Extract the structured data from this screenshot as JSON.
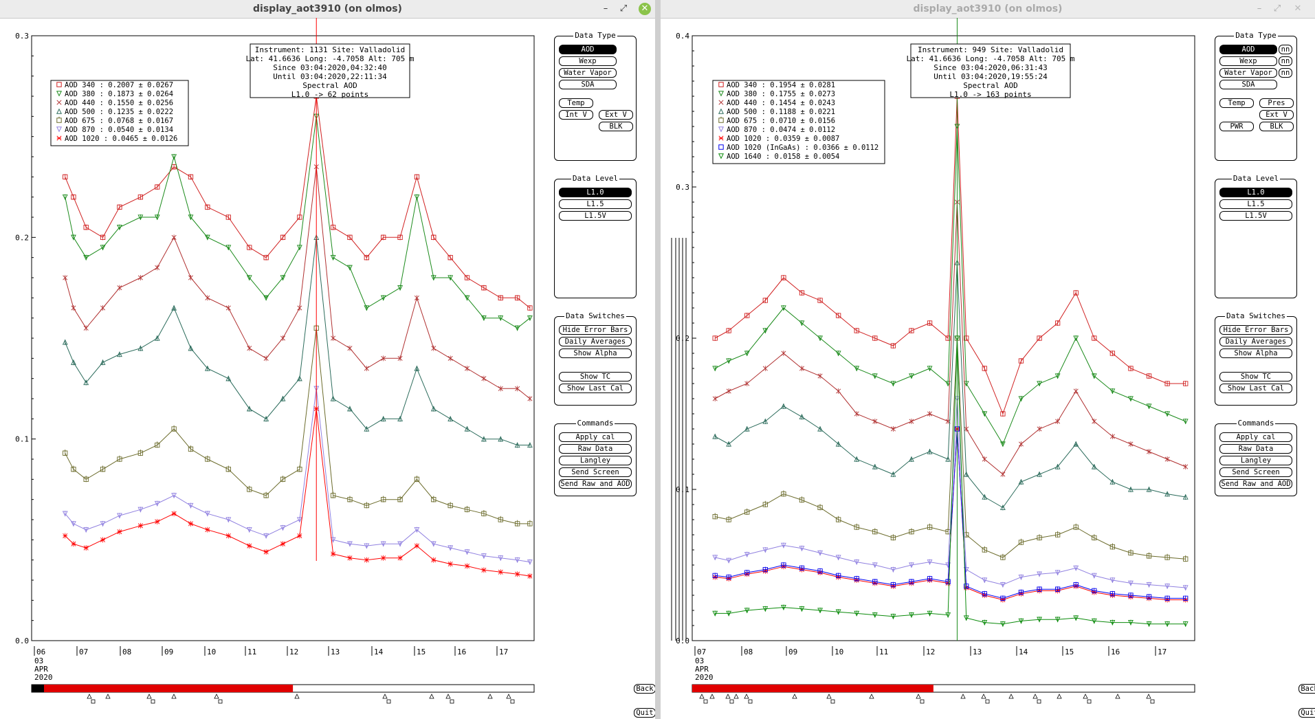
{
  "windows": [
    {
      "title": "display_aot3910 (on olmos)",
      "active": true,
      "controls": {
        "minimize": "–",
        "maximize": "⤢",
        "close": "✕"
      },
      "info": {
        "line1": "Instrument: 1131 Site: Valladolid",
        "line2": "Lat: 41.6636 Long: -4.7058 Alt: 705 m",
        "line3": "Since 03:04:2020,04:32:40",
        "line4": "Until 03:04:2020,22:11:34",
        "line5": "Spectral AOD",
        "line6": "L1.0 -> 62 points"
      },
      "legend": [
        {
          "label": "AOD 340  : 0.2007 ± 0.0267",
          "color": "#d02020"
        },
        {
          "label": "AOD 380  : 0.1873 ± 0.0264",
          "color": "#1a8a1a"
        },
        {
          "label": "AOD 440  : 0.1550 ± 0.0256",
          "color": "#b03030"
        },
        {
          "label": "AOD 500  : 0.1235 ± 0.0222",
          "color": "#2b6b5b"
        },
        {
          "label": "AOD 675  : 0.0768 ± 0.0167",
          "color": "#6b6b2b"
        },
        {
          "label": "AOD 870  : 0.0540 ± 0.0134",
          "color": "#9080e0"
        },
        {
          "label": "AOD 1020  : 0.0465 ± 0.0126",
          "color": "#ff0000"
        }
      ],
      "y_ticks": [
        "0.0",
        "0.1",
        "0.2",
        "0.3"
      ],
      "ymax": 0.3,
      "x_ticks": [
        "06",
        "07",
        "08",
        "09",
        "10",
        "11",
        "12",
        "13",
        "14",
        "15",
        "16",
        "17"
      ],
      "date_lines": [
        "03",
        "APR",
        "2020"
      ],
      "progress": 0.52,
      "panels": {
        "data_type": {
          "title": "Data Type",
          "buttons": [
            "AOD",
            "Wexp",
            "Water Vapor",
            "SDA",
            "Temp",
            "Int V",
            "Ext V",
            "BLK"
          ],
          "selected": "AOD"
        },
        "data_level": {
          "title": "Data Level",
          "buttons": [
            "L1.0",
            "L1.5",
            "L1.5V"
          ],
          "selected": "L1.0"
        },
        "switches": {
          "title": "Data Switches",
          "buttons": [
            "Hide Error Bars",
            "Daily Averages",
            "Show Alpha",
            "Show TC",
            "Show Last Cal"
          ]
        },
        "commands": {
          "title": "Commands",
          "buttons": [
            "Apply cal",
            "Raw Data",
            "Langley",
            "Send Screen",
            "Send Raw and AOD"
          ]
        }
      },
      "back": "Back",
      "quit": "Quit"
    },
    {
      "title": "display_aot3910 (on olmos)",
      "active": false,
      "controls": {
        "minimize": "–",
        "maximize": "⤢",
        "close": "✕"
      },
      "info": {
        "line1": "Instrument: 949 Site: Valladolid",
        "line2": "Lat: 41.6636 Long: -4.7058 Alt: 705 m",
        "line3": "Since 03:04:2020,06:31:43",
        "line4": "Until 03:04:2020,19:55:24",
        "line5": "Spectral AOD",
        "line6": "L1.0 -> 163 points"
      },
      "legend": [
        {
          "label": "AOD 340  : 0.1954 ± 0.0281",
          "color": "#d02020"
        },
        {
          "label": "AOD 380  : 0.1755 ± 0.0273",
          "color": "#1a8a1a"
        },
        {
          "label": "AOD 440  : 0.1454 ± 0.0243",
          "color": "#b03030"
        },
        {
          "label": "AOD 500  : 0.1188 ± 0.0221",
          "color": "#2b6b5b"
        },
        {
          "label": "AOD 675  : 0.0710 ± 0.0156",
          "color": "#6b6b2b"
        },
        {
          "label": "AOD 870  : 0.0474 ± 0.0112",
          "color": "#9080e0"
        },
        {
          "label": "AOD 1020  : 0.0359 ± 0.0087",
          "color": "#ff0000"
        },
        {
          "label": "AOD 1020 (InGaAs)  : 0.0366 ± 0.0112",
          "color": "#0000ee"
        },
        {
          "label": "AOD 1640  : 0.0158 ± 0.0054",
          "color": "#0a8a0a"
        }
      ],
      "y_ticks": [
        "0.0",
        "0.1",
        "0.2",
        "0.3",
        "0.4"
      ],
      "ymax": 0.4,
      "x_ticks": [
        "07",
        "08",
        "09",
        "10",
        "11",
        "12",
        "13",
        "14",
        "15",
        "16",
        "17"
      ],
      "date_lines": [
        "03",
        "APR",
        "2020"
      ],
      "progress": 0.48,
      "panels": {
        "data_type": {
          "title": "Data Type",
          "buttons": [
            "AOD",
            "Wexp",
            "Water Vapor",
            "SDA",
            "Temp",
            "Pres",
            "Ext V",
            "PWR",
            "BLK"
          ],
          "side": "nn",
          "selected": "AOD"
        },
        "data_level": {
          "title": "Data Level",
          "buttons": [
            "L1.0",
            "L1.5",
            "L1.5V"
          ],
          "selected": "L1.0"
        },
        "switches": {
          "title": "Data Switches",
          "buttons": [
            "Hide Error Bars",
            "Daily Averages",
            "Show Alpha",
            "Show TC",
            "Show Last Cal"
          ]
        },
        "commands": {
          "title": "Commands",
          "buttons": [
            "Apply cal",
            "Raw Data",
            "Langley",
            "Send Screen",
            "Send Raw and AOD"
          ]
        }
      },
      "back": "Back",
      "quit": "Quit"
    }
  ],
  "chart_data": [
    {
      "type": "line",
      "xlabel": "",
      "ylabel": "",
      "ylim": [
        0,
        0.3
      ],
      "x_ticks": [
        "06",
        "07",
        "08",
        "09",
        "10",
        "11",
        "12",
        "13",
        "14",
        "15",
        "16",
        "17"
      ],
      "x": [
        6.8,
        7.0,
        7.3,
        7.7,
        8.1,
        8.6,
        9.0,
        9.4,
        9.8,
        10.2,
        10.7,
        11.2,
        11.6,
        12.0,
        12.4,
        12.8,
        13.2,
        13.6,
        14.0,
        14.4,
        14.8,
        15.2,
        15.6,
        16.0,
        16.4,
        16.8,
        17.2,
        17.6,
        17.9
      ],
      "series": [
        {
          "name": "AOD 340",
          "values": [
            0.23,
            0.22,
            0.205,
            0.2,
            0.215,
            0.22,
            0.225,
            0.235,
            0.23,
            0.215,
            0.21,
            0.195,
            0.19,
            0.2,
            0.21,
            0.27,
            0.205,
            0.2,
            0.19,
            0.2,
            0.2,
            0.23,
            0.2,
            0.19,
            0.18,
            0.175,
            0.17,
            0.17,
            0.165
          ]
        },
        {
          "name": "AOD 380",
          "values": [
            0.22,
            0.2,
            0.19,
            0.195,
            0.205,
            0.21,
            0.21,
            0.24,
            0.21,
            0.2,
            0.195,
            0.18,
            0.17,
            0.18,
            0.195,
            0.26,
            0.19,
            0.185,
            0.165,
            0.17,
            0.175,
            0.22,
            0.18,
            0.18,
            0.17,
            0.16,
            0.16,
            0.155,
            0.16
          ]
        },
        {
          "name": "AOD 440",
          "values": [
            0.18,
            0.165,
            0.155,
            0.165,
            0.175,
            0.18,
            0.185,
            0.2,
            0.18,
            0.17,
            0.165,
            0.145,
            0.14,
            0.15,
            0.165,
            0.235,
            0.15,
            0.145,
            0.135,
            0.14,
            0.14,
            0.17,
            0.145,
            0.14,
            0.135,
            0.13,
            0.125,
            0.125,
            0.12
          ]
        },
        {
          "name": "AOD 500",
          "values": [
            0.148,
            0.138,
            0.128,
            0.138,
            0.142,
            0.145,
            0.15,
            0.165,
            0.145,
            0.135,
            0.13,
            0.115,
            0.11,
            0.12,
            0.13,
            0.2,
            0.12,
            0.115,
            0.105,
            0.11,
            0.11,
            0.135,
            0.115,
            0.11,
            0.105,
            0.1,
            0.1,
            0.097,
            0.097
          ]
        },
        {
          "name": "AOD 675",
          "values": [
            0.093,
            0.085,
            0.08,
            0.085,
            0.09,
            0.093,
            0.097,
            0.105,
            0.095,
            0.09,
            0.085,
            0.075,
            0.072,
            0.08,
            0.085,
            0.155,
            0.072,
            0.07,
            0.067,
            0.07,
            0.07,
            0.08,
            0.07,
            0.067,
            0.065,
            0.063,
            0.06,
            0.058,
            0.058
          ]
        },
        {
          "name": "AOD 870",
          "values": [
            0.063,
            0.058,
            0.055,
            0.058,
            0.062,
            0.065,
            0.068,
            0.072,
            0.067,
            0.063,
            0.06,
            0.055,
            0.052,
            0.056,
            0.06,
            0.125,
            0.05,
            0.048,
            0.047,
            0.048,
            0.048,
            0.055,
            0.048,
            0.046,
            0.044,
            0.042,
            0.041,
            0.04,
            0.039
          ]
        },
        {
          "name": "AOD 1020",
          "values": [
            0.052,
            0.048,
            0.046,
            0.05,
            0.054,
            0.057,
            0.059,
            0.063,
            0.058,
            0.055,
            0.052,
            0.047,
            0.044,
            0.048,
            0.052,
            0.115,
            0.043,
            0.041,
            0.04,
            0.041,
            0.041,
            0.047,
            0.04,
            0.038,
            0.037,
            0.035,
            0.034,
            0.033,
            0.032
          ]
        }
      ]
    },
    {
      "type": "line",
      "xlabel": "",
      "ylabel": "",
      "ylim": [
        0,
        0.4
      ],
      "x_ticks": [
        "07",
        "08",
        "09",
        "10",
        "11",
        "12",
        "13",
        "14",
        "15",
        "16",
        "17"
      ],
      "x": [
        7.5,
        7.8,
        8.2,
        8.6,
        9.0,
        9.4,
        9.8,
        10.2,
        10.6,
        11.0,
        11.4,
        11.8,
        12.2,
        12.6,
        12.8,
        13.0,
        13.4,
        13.8,
        14.2,
        14.6,
        15.0,
        15.4,
        15.8,
        16.2,
        16.6,
        17.0,
        17.4,
        17.8
      ],
      "series": [
        {
          "name": "AOD 340",
          "values": [
            0.2,
            0.205,
            0.215,
            0.225,
            0.24,
            0.23,
            0.225,
            0.215,
            0.205,
            0.2,
            0.195,
            0.205,
            0.21,
            0.2,
            0.36,
            0.2,
            0.18,
            0.15,
            0.185,
            0.2,
            0.21,
            0.23,
            0.2,
            0.19,
            0.18,
            0.175,
            0.17,
            0.17
          ]
        },
        {
          "name": "AOD 380",
          "values": [
            0.18,
            0.185,
            0.19,
            0.205,
            0.22,
            0.21,
            0.2,
            0.19,
            0.18,
            0.175,
            0.17,
            0.175,
            0.18,
            0.17,
            0.34,
            0.17,
            0.15,
            0.13,
            0.16,
            0.17,
            0.175,
            0.2,
            0.175,
            0.165,
            0.16,
            0.155,
            0.15,
            0.145
          ]
        },
        {
          "name": "AOD 440",
          "values": [
            0.16,
            0.165,
            0.17,
            0.18,
            0.19,
            0.18,
            0.175,
            0.165,
            0.15,
            0.145,
            0.14,
            0.145,
            0.15,
            0.145,
            0.29,
            0.14,
            0.12,
            0.11,
            0.13,
            0.14,
            0.145,
            0.165,
            0.145,
            0.135,
            0.13,
            0.125,
            0.12,
            0.115
          ]
        },
        {
          "name": "AOD 500",
          "values": [
            0.135,
            0.13,
            0.14,
            0.145,
            0.155,
            0.148,
            0.14,
            0.13,
            0.12,
            0.115,
            0.11,
            0.12,
            0.125,
            0.12,
            0.25,
            0.11,
            0.095,
            0.088,
            0.105,
            0.11,
            0.115,
            0.13,
            0.115,
            0.105,
            0.1,
            0.1,
            0.097,
            0.095
          ]
        },
        {
          "name": "AOD 675",
          "values": [
            0.082,
            0.08,
            0.085,
            0.09,
            0.097,
            0.093,
            0.088,
            0.08,
            0.075,
            0.072,
            0.068,
            0.072,
            0.075,
            0.072,
            0.2,
            0.07,
            0.06,
            0.055,
            0.065,
            0.068,
            0.07,
            0.075,
            0.068,
            0.062,
            0.058,
            0.056,
            0.055,
            0.054
          ]
        },
        {
          "name": "AOD 870",
          "values": [
            0.055,
            0.053,
            0.057,
            0.06,
            0.063,
            0.061,
            0.058,
            0.055,
            0.052,
            0.05,
            0.047,
            0.05,
            0.052,
            0.05,
            0.16,
            0.047,
            0.04,
            0.037,
            0.042,
            0.044,
            0.045,
            0.048,
            0.043,
            0.04,
            0.038,
            0.037,
            0.036,
            0.035
          ]
        },
        {
          "name": "AOD 1020",
          "values": [
            0.042,
            0.041,
            0.044,
            0.046,
            0.049,
            0.047,
            0.045,
            0.042,
            0.04,
            0.038,
            0.036,
            0.038,
            0.04,
            0.038,
            0.14,
            0.035,
            0.03,
            0.027,
            0.031,
            0.033,
            0.033,
            0.036,
            0.032,
            0.03,
            0.029,
            0.028,
            0.027,
            0.027
          ]
        },
        {
          "name": "AOD 1020 (InGaAs)",
          "values": [
            0.043,
            0.042,
            0.045,
            0.047,
            0.05,
            0.048,
            0.046,
            0.043,
            0.041,
            0.039,
            0.037,
            0.039,
            0.041,
            0.039,
            0.14,
            0.036,
            0.031,
            0.028,
            0.032,
            0.034,
            0.034,
            0.037,
            0.033,
            0.031,
            0.03,
            0.029,
            0.028,
            0.028
          ]
        },
        {
          "name": "AOD 1640",
          "values": [
            0.018,
            0.018,
            0.02,
            0.021,
            0.022,
            0.021,
            0.02,
            0.019,
            0.018,
            0.017,
            0.016,
            0.017,
            0.018,
            0.017,
            0.2,
            0.015,
            0.012,
            0.011,
            0.013,
            0.014,
            0.014,
            0.015,
            0.013,
            0.012,
            0.012,
            0.011,
            0.011,
            0.011
          ]
        }
      ]
    }
  ]
}
